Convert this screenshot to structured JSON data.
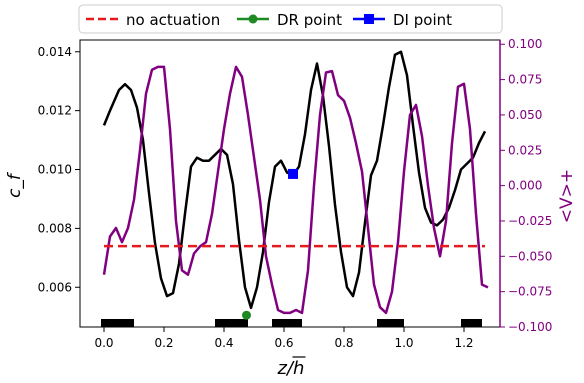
{
  "chart_data": {
    "type": "line",
    "title": "",
    "xlabel": "z/h",
    "ylabel_left": "c_f",
    "ylabel_right": "<V>+",
    "xlim": [
      -0.08,
      1.32
    ],
    "ylim_left": [
      0.00465,
      0.0144
    ],
    "ylim_right": [
      -0.1,
      0.103
    ],
    "x_ticks": [
      0.0,
      0.2,
      0.4,
      0.6,
      0.8,
      1.0,
      1.2
    ],
    "x_tick_labels": [
      "0.0",
      "0.2",
      "0.4",
      "0.6",
      "0.8",
      "1.0",
      "1.2"
    ],
    "y_left_ticks": [
      0.006,
      0.008,
      0.01,
      0.012,
      0.014
    ],
    "y_left_tick_labels": [
      "0.006",
      "0.008",
      "0.010",
      "0.012",
      "0.014"
    ],
    "y_right_ticks": [
      -0.1,
      -0.075,
      -0.05,
      -0.025,
      0.0,
      0.025,
      0.05,
      0.075,
      0.1
    ],
    "y_right_tick_labels": [
      "−0.100",
      "−0.075",
      "−0.050",
      "−0.025",
      "0.000",
      "0.025",
      "0.050",
      "0.075",
      "0.100"
    ],
    "grid": false,
    "legend_position": "top, outside",
    "legend": [
      {
        "label": "no actuation",
        "style": "dashed",
        "color": "#e41a1c"
      },
      {
        "label": "DR point",
        "style": "line-circle",
        "color": "#1e8b22"
      },
      {
        "label": "DI point",
        "style": "line-square",
        "color": "#0000ff"
      }
    ],
    "series": [
      {
        "axis": "left",
        "color": "#000000",
        "x": [
          0.0,
          0.02,
          0.05,
          0.07,
          0.09,
          0.11,
          0.13,
          0.15,
          0.17,
          0.19,
          0.21,
          0.23,
          0.25,
          0.27,
          0.29,
          0.31,
          0.33,
          0.35,
          0.37,
          0.39,
          0.41,
          0.43,
          0.45,
          0.47,
          0.49,
          0.51,
          0.53,
          0.55,
          0.57,
          0.59,
          0.61,
          0.63,
          0.65,
          0.67,
          0.69,
          0.71,
          0.73,
          0.75,
          0.77,
          0.79,
          0.81,
          0.83,
          0.85,
          0.87,
          0.89,
          0.91,
          0.93,
          0.95,
          0.97,
          0.99,
          1.01,
          1.03,
          1.05,
          1.07,
          1.09,
          1.11,
          1.13,
          1.15,
          1.17,
          1.19,
          1.21,
          1.23,
          1.25,
          1.27
        ],
        "y": [
          0.0115,
          0.012,
          0.0127,
          0.0129,
          0.0127,
          0.0121,
          0.011,
          0.0092,
          0.0075,
          0.0063,
          0.0057,
          0.0058,
          0.0068,
          0.0085,
          0.0101,
          0.0104,
          0.0103,
          0.0103,
          0.0105,
          0.0107,
          0.0105,
          0.0095,
          0.0076,
          0.006,
          0.0053,
          0.006,
          0.0072,
          0.0089,
          0.0101,
          0.0103,
          0.0099,
          0.0098,
          0.0101,
          0.0112,
          0.0127,
          0.0136,
          0.0125,
          0.0108,
          0.0088,
          0.0072,
          0.006,
          0.0057,
          0.0065,
          0.0082,
          0.0098,
          0.0103,
          0.0115,
          0.0128,
          0.0139,
          0.014,
          0.0132,
          0.0115,
          0.0099,
          0.0087,
          0.0082,
          0.0081,
          0.0083,
          0.0087,
          0.0093,
          0.01,
          0.0102,
          0.0104,
          0.0109,
          0.0113
        ]
      },
      {
        "axis": "right",
        "color": "#800080",
        "x": [
          0.0,
          0.02,
          0.04,
          0.06,
          0.08,
          0.1,
          0.12,
          0.14,
          0.16,
          0.18,
          0.2,
          0.22,
          0.24,
          0.26,
          0.28,
          0.3,
          0.32,
          0.34,
          0.36,
          0.38,
          0.4,
          0.42,
          0.44,
          0.46,
          0.48,
          0.5,
          0.52,
          0.54,
          0.56,
          0.58,
          0.6,
          0.62,
          0.64,
          0.66,
          0.68,
          0.7,
          0.72,
          0.74,
          0.76,
          0.78,
          0.8,
          0.82,
          0.84,
          0.86,
          0.88,
          0.9,
          0.92,
          0.94,
          0.96,
          0.98,
          1.0,
          1.02,
          1.04,
          1.06,
          1.08,
          1.1,
          1.12,
          1.14,
          1.16,
          1.18,
          1.2,
          1.22,
          1.24,
          1.26,
          1.28
        ],
        "y": [
          -0.063,
          -0.036,
          -0.03,
          -0.04,
          -0.03,
          -0.01,
          0.025,
          0.065,
          0.082,
          0.084,
          0.084,
          0.04,
          -0.025,
          -0.06,
          -0.063,
          -0.048,
          -0.043,
          -0.04,
          -0.02,
          0.01,
          0.04,
          0.065,
          0.084,
          0.077,
          0.05,
          0.02,
          -0.01,
          -0.05,
          -0.07,
          -0.088,
          -0.09,
          -0.09,
          -0.088,
          -0.09,
          -0.06,
          0.0,
          0.05,
          0.08,
          0.081,
          0.064,
          0.06,
          0.048,
          0.03,
          0.01,
          -0.03,
          -0.07,
          -0.086,
          -0.09,
          -0.075,
          -0.04,
          0.01,
          0.05,
          0.057,
          0.035,
          0.0,
          -0.03,
          -0.05,
          -0.025,
          0.03,
          0.07,
          0.072,
          0.04,
          -0.02,
          -0.07,
          -0.072
        ]
      },
      {
        "axis": "left",
        "color": "#e41a1c",
        "style": "dashed",
        "x": [
          0.0,
          1.27
        ],
        "y": [
          0.0074,
          0.0074
        ]
      }
    ],
    "markers": [
      {
        "name": "DR point",
        "axis": "left",
        "x": 0.475,
        "y": 0.00505,
        "shape": "circle",
        "color": "#1e8b22"
      },
      {
        "name": "DI point",
        "axis": "left",
        "x": 0.63,
        "y": 0.00985,
        "shape": "square",
        "color": "#0000ff"
      }
    ],
    "actuation_bars": [
      [
        -0.01,
        0.1
      ],
      [
        0.37,
        0.48
      ],
      [
        0.56,
        0.66
      ],
      [
        0.91,
        1.0
      ],
      [
        1.19,
        1.26
      ]
    ]
  }
}
